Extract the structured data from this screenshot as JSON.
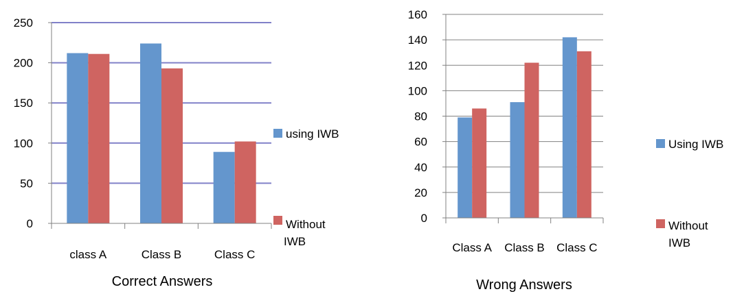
{
  "chart_data": [
    {
      "type": "bar",
      "title": "",
      "xlabel": "Correct Answers",
      "ylabel": "",
      "categories": [
        "class A",
        "Class B",
        "Class C"
      ],
      "series": [
        {
          "name": "using IWB",
          "values": [
            212,
            224,
            89
          ]
        },
        {
          "name": "Without IWB",
          "values": [
            211,
            193,
            102
          ]
        }
      ],
      "ylim": [
        0,
        250
      ],
      "yticks": [
        "0",
        "50",
        "100",
        "150",
        "200",
        "250"
      ],
      "grid": true,
      "legend": "right",
      "colors": [
        "#6496cd",
        "#cf6461"
      ]
    },
    {
      "type": "bar",
      "title": "",
      "xlabel": "Wrong Answers",
      "ylabel": "",
      "categories": [
        "Class A",
        "Class B",
        "Class C"
      ],
      "series": [
        {
          "name": "Using IWB",
          "values": [
            79,
            91,
            142
          ]
        },
        {
          "name": "Without IWB",
          "values": [
            86,
            122,
            131
          ]
        }
      ],
      "ylim": [
        0,
        160
      ],
      "yticks": [
        "0",
        "20",
        "40",
        "60",
        "80",
        "100",
        "120",
        "140",
        "160"
      ],
      "grid": true,
      "legend": "right",
      "colors": [
        "#6496cd",
        "#cf6461"
      ]
    }
  ]
}
